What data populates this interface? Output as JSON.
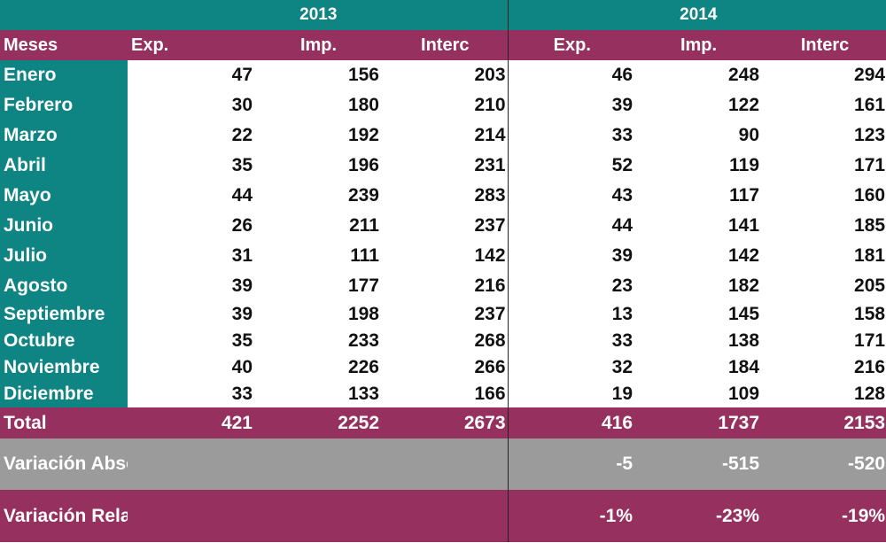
{
  "chart_data": {
    "type": "table",
    "years": [
      "2013",
      "2014"
    ],
    "row_header": "Meses",
    "columns": [
      "Exp.",
      "Imp.",
      "Interc"
    ],
    "rows": [
      {
        "mes": "Enero",
        "y2013": [
          "47",
          "156",
          "203"
        ],
        "y2014": [
          "46",
          "248",
          "294"
        ]
      },
      {
        "mes": "Febrero",
        "y2013": [
          "30",
          "180",
          "210"
        ],
        "y2014": [
          "39",
          "122",
          "161"
        ]
      },
      {
        "mes": "Marzo",
        "y2013": [
          "22",
          "192",
          "214"
        ],
        "y2014": [
          "33",
          "90",
          "123"
        ]
      },
      {
        "mes": "Abril",
        "y2013": [
          "35",
          "196",
          "231"
        ],
        "y2014": [
          "52",
          "119",
          "171"
        ]
      },
      {
        "mes": "Mayo",
        "y2013": [
          "44",
          "239",
          "283"
        ],
        "y2014": [
          "43",
          "117",
          "160"
        ]
      },
      {
        "mes": "Junio",
        "y2013": [
          "26",
          "211",
          "237"
        ],
        "y2014": [
          "44",
          "141",
          "185"
        ]
      },
      {
        "mes": "Julio",
        "y2013": [
          "31",
          "111",
          "142"
        ],
        "y2014": [
          "39",
          "142",
          "181"
        ]
      },
      {
        "mes": "Agosto",
        "y2013": [
          "39",
          "177",
          "216"
        ],
        "y2014": [
          "23",
          "182",
          "205"
        ]
      },
      {
        "mes": "Septiembre",
        "y2013": [
          "39",
          "198",
          "237"
        ],
        "y2014": [
          "13",
          "145",
          "158"
        ]
      },
      {
        "mes": "Octubre",
        "y2013": [
          "35",
          "233",
          "268"
        ],
        "y2014": [
          "33",
          "138",
          "171"
        ]
      },
      {
        "mes": "Noviembre",
        "y2013": [
          "40",
          "226",
          "266"
        ],
        "y2014": [
          "32",
          "184",
          "216"
        ]
      },
      {
        "mes": "Diciembre",
        "y2013": [
          "33",
          "133",
          "166"
        ],
        "y2014": [
          "19",
          "109",
          "128"
        ]
      }
    ],
    "total": {
      "label": "Total",
      "y2013": [
        "421",
        "2252",
        "2673"
      ],
      "y2014": [
        "416",
        "1737",
        "2153"
      ]
    },
    "variacion_absoluta": {
      "label": "Variación Absoluta",
      "y2014": [
        "-5",
        "-515",
        "-520"
      ]
    },
    "variacion_relativa": {
      "label": "Variación Relativa",
      "y2014": [
        "-1%",
        "-23%",
        "-19%"
      ]
    }
  },
  "colors": {
    "teal": "#0e8483",
    "magenta": "#95305f",
    "gray": "#9b9b9b",
    "text_dark": "#111111",
    "text_light": "#ffffff"
  }
}
